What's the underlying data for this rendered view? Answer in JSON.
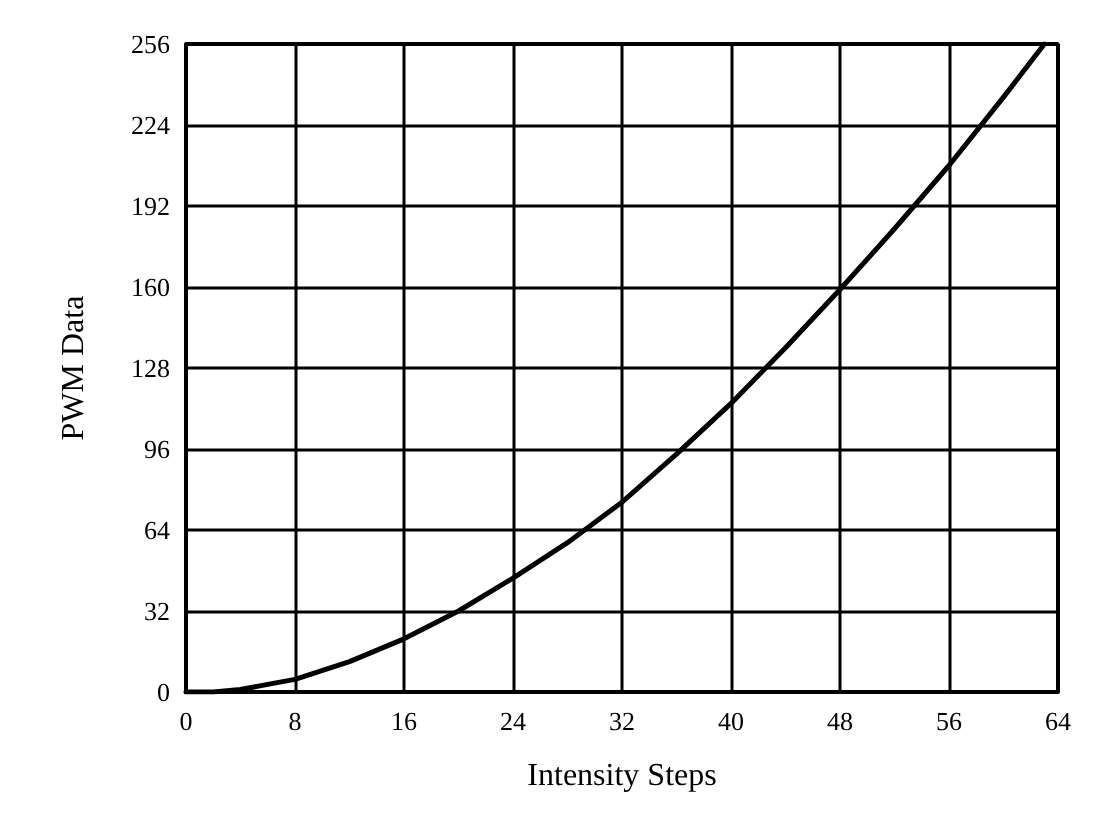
{
  "chart_data": {
    "type": "line",
    "xlabel": "Intensity Steps",
    "ylabel": "PWM Data",
    "x": [
      0,
      2,
      4,
      6,
      8,
      12,
      16,
      20,
      24,
      28,
      32,
      36,
      40,
      44,
      48,
      52,
      56,
      60,
      63
    ],
    "series": [
      {
        "color": "#000000",
        "values": [
          0,
          0,
          1,
          3,
          5,
          12,
          21,
          32,
          45,
          59,
          75,
          94,
          114,
          136,
          159,
          183,
          208,
          235,
          256
        ]
      }
    ],
    "xlim": [
      0,
      64
    ],
    "xticks": [
      0,
      8,
      16,
      24,
      32,
      40,
      48,
      56,
      64
    ],
    "ylim": [
      0,
      256
    ],
    "yticks": [
      0,
      32,
      64,
      96,
      128,
      160,
      192,
      224,
      256
    ],
    "grid": true,
    "marker": "none",
    "line_style": "solid"
  }
}
